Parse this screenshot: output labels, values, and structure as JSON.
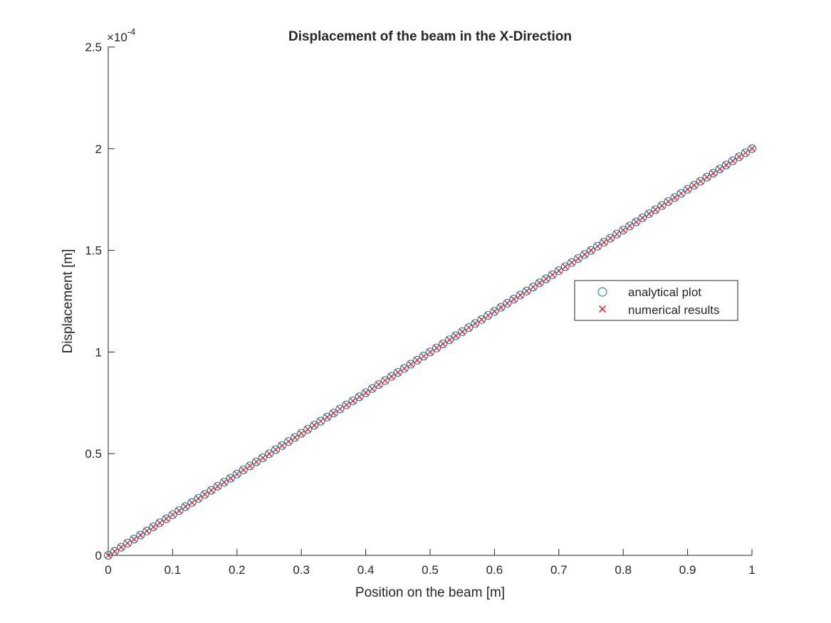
{
  "chart_data": {
    "type": "scatter",
    "title": "Displacement of the beam in the X-Direction",
    "xlabel": "Position on the beam [m]",
    "ylabel": "Displacement [m]",
    "y_exponent_label": "×10",
    "y_exponent": "-4",
    "xlim": [
      0,
      1
    ],
    "ylim": [
      0,
      0.00025
    ],
    "x_ticks": [
      0,
      0.1,
      0.2,
      0.3,
      0.4,
      0.5,
      0.6,
      0.7,
      0.8,
      0.9,
      1
    ],
    "x_tick_labels": [
      "0",
      "0.1",
      "0.2",
      "0.3",
      "0.4",
      "0.5",
      "0.6",
      "0.7",
      "0.8",
      "0.9",
      "1"
    ],
    "y_ticks": [
      0,
      5e-05,
      0.0001,
      0.00015,
      0.0002,
      0.00025
    ],
    "y_tick_labels": [
      "0",
      "0.5",
      "1",
      "1.5",
      "2",
      "2.5"
    ],
    "grid": false,
    "legend_position": "right",
    "series": [
      {
        "name": "analytical plot",
        "marker": "circle",
        "color": "#0072BD",
        "x_start": 0,
        "x_end": 1,
        "x_step": 0.01,
        "relation": "y = 0.0002 * x"
      },
      {
        "name": "numerical results",
        "marker": "x",
        "color": "#FF0000",
        "x_start": 0,
        "x_end": 1,
        "x_step": 0.01,
        "relation": "y = 0.0002 * x"
      }
    ]
  }
}
